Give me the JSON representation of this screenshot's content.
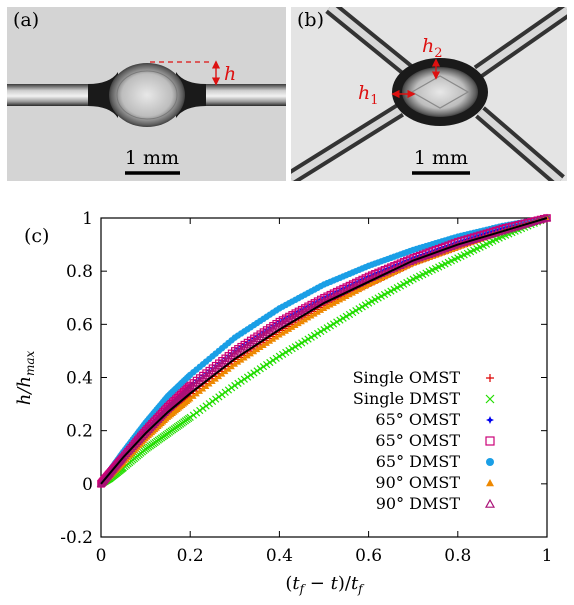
{
  "panels": {
    "a": {
      "label": "(a)",
      "scale_label": "1 mm",
      "annotation": "h"
    },
    "b": {
      "label": "(b)",
      "scale_label": "1 mm",
      "annotation_1": "h",
      "annotation_1_sub": "1",
      "annotation_2": "h",
      "annotation_2_sub": "2"
    },
    "c": {
      "label": "(c)"
    }
  },
  "colors": {
    "annotation": "#dd1111",
    "single_omst": "#dd0000",
    "single_dmst": "#22dd00",
    "omst_65_star": "#0000ee",
    "omst_65_square": "#cc0077",
    "dmst_65": "#1a9fe6",
    "omst_90": "#ee8800",
    "dmst_90": "#aa1177",
    "fit_line": "#000000"
  },
  "chart_data": {
    "type": "scatter",
    "title": "",
    "xlabel": "(t_f - t)/t_f",
    "ylabel": "h/h_max",
    "xlim": [
      0,
      1
    ],
    "ylim": [
      -0.2,
      1
    ],
    "x_ticks": [
      "0",
      "0.2",
      "0.4",
      "0.6",
      "0.8",
      "1"
    ],
    "y_ticks": [
      "-0.2",
      "0",
      "0.2",
      "0.4",
      "0.6",
      "0.8",
      "1"
    ],
    "grid": false,
    "legend_position": "bottom-right",
    "x": [
      0,
      0.02,
      0.05,
      0.1,
      0.15,
      0.2,
      0.3,
      0.4,
      0.5,
      0.6,
      0.7,
      0.8,
      0.9,
      1.0
    ],
    "series": [
      {
        "name": "Single OMST",
        "marker": "plus",
        "values": [
          0,
          0.03,
          0.09,
          0.18,
          0.26,
          0.33,
          0.46,
          0.57,
          0.67,
          0.75,
          0.83,
          0.89,
          0.95,
          1.0
        ]
      },
      {
        "name": "Single DMST",
        "marker": "cross",
        "values": [
          0,
          0.02,
          0.06,
          0.13,
          0.19,
          0.25,
          0.37,
          0.48,
          0.58,
          0.68,
          0.77,
          0.85,
          0.93,
          1.0
        ]
      },
      {
        "name": "65° OMST",
        "marker": "star",
        "values": [
          0,
          0.04,
          0.1,
          0.2,
          0.29,
          0.37,
          0.5,
          0.61,
          0.7,
          0.78,
          0.85,
          0.91,
          0.96,
          1.0
        ]
      },
      {
        "name": "65° OMST",
        "marker": "square",
        "values": [
          0,
          0.04,
          0.1,
          0.2,
          0.29,
          0.37,
          0.5,
          0.61,
          0.7,
          0.78,
          0.85,
          0.91,
          0.96,
          1.0
        ]
      },
      {
        "name": "65° DMST",
        "marker": "circle",
        "values": [
          0,
          0.05,
          0.12,
          0.23,
          0.33,
          0.41,
          0.55,
          0.66,
          0.75,
          0.82,
          0.88,
          0.93,
          0.97,
          1.0
        ]
      },
      {
        "name": "90° OMST",
        "marker": "triangle",
        "values": [
          0,
          0.03,
          0.08,
          0.17,
          0.25,
          0.32,
          0.45,
          0.56,
          0.66,
          0.75,
          0.83,
          0.89,
          0.95,
          1.0
        ]
      },
      {
        "name": "90° DMST",
        "marker": "triangle-open",
        "values": [
          0,
          0.04,
          0.1,
          0.19,
          0.28,
          0.36,
          0.49,
          0.6,
          0.69,
          0.77,
          0.84,
          0.9,
          0.95,
          1.0
        ]
      }
    ],
    "fit_line": {
      "x": [
        0,
        0.02,
        0.05,
        0.1,
        0.15,
        0.2,
        0.3,
        0.4,
        0.5,
        0.6,
        0.7,
        0.8,
        0.9,
        1.0
      ],
      "values": [
        0,
        0.04,
        0.1,
        0.19,
        0.27,
        0.34,
        0.47,
        0.58,
        0.68,
        0.76,
        0.84,
        0.9,
        0.95,
        1.0
      ]
    }
  }
}
